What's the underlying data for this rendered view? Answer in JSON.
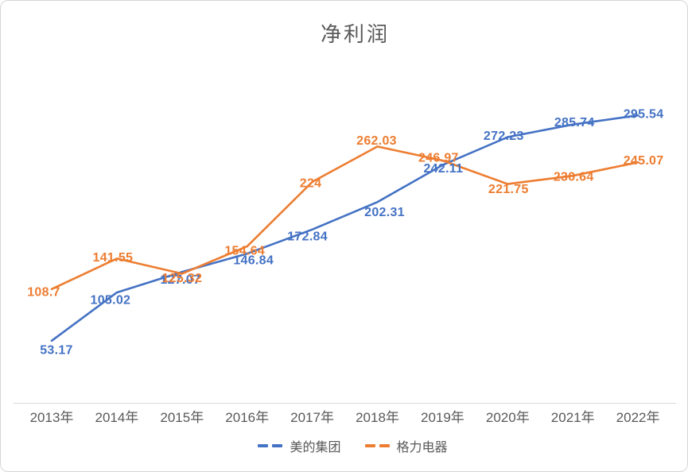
{
  "chart_data": {
    "type": "line",
    "title": "净利润",
    "categories": [
      "2013年",
      "2014年",
      "2015年",
      "2016年",
      "2017年",
      "2018年",
      "2019年",
      "2020年",
      "2021年",
      "2022年"
    ],
    "series": [
      {
        "name": "美的集团",
        "color": "#4472C4",
        "values": [
          53.17,
          105.02,
          127.07,
          146.84,
          172.84,
          202.31,
          242.11,
          272.23,
          285.74,
          295.54
        ]
      },
      {
        "name": "格力电器",
        "color": "#ED7D31",
        "values": [
          108.7,
          141.55,
          125.32,
          154.64,
          224,
          262.03,
          246.97,
          221.75,
          230.64,
          245.07
        ]
      }
    ],
    "ylim": [
      0,
      350
    ],
    "grid": false,
    "data_labels": true,
    "legend_position": "bottom",
    "axis_color": "#D9D9D9",
    "text_color": "#595959"
  }
}
